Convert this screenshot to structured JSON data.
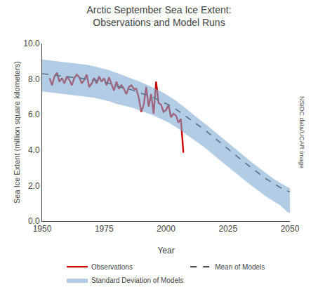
{
  "chart_data": {
    "type": "line",
    "title": "Arctic September Sea Ice Extent:\nObservations and Model Runs",
    "xlabel": "Year",
    "ylabel": "Sea Ice Extent (million square kilometers)",
    "annotations": [
      "NSIDC data/UCAR image"
    ],
    "xlim": [
      1950,
      2050
    ],
    "xticks": [
      1950,
      1975,
      2000,
      2025,
      2050
    ],
    "ylim": [
      0.0,
      10.0
    ],
    "yticks": [
      {
        "value": 0.0,
        "label": "0.0"
      },
      {
        "value": 2.0,
        "label": "2.0"
      },
      {
        "value": 4.0,
        "label": "4.0"
      },
      {
        "value": 6.0,
        "label": "6.0"
      },
      {
        "value": 8.0,
        "label": "8.0"
      },
      {
        "value": 10.0,
        "label": "10.0"
      }
    ],
    "grid": false,
    "legend": "bottom",
    "series": [
      {
        "name": "Observations",
        "type": "line",
        "color": "#cc0000",
        "line_style": "solid",
        "x": [
          1953,
          1954,
          1955,
          1956,
          1957,
          1958,
          1959,
          1960,
          1961,
          1962,
          1963,
          1964,
          1965,
          1966,
          1967,
          1968,
          1969,
          1970,
          1971,
          1972,
          1973,
          1974,
          1975,
          1976,
          1977,
          1978,
          1979,
          1980,
          1981,
          1982,
          1983,
          1984,
          1985,
          1986,
          1987,
          1988,
          1989,
          1990,
          1991,
          1992,
          1993,
          1994,
          1995,
          1996,
          1997,
          1998,
          1999,
          2000,
          2001,
          2002,
          2003,
          2004,
          2005,
          2006,
          2007
        ],
        "values": [
          8.05,
          7.65,
          8.15,
          8.35,
          7.85,
          8.05,
          7.75,
          8.15,
          7.95,
          7.65,
          8.05,
          8.25,
          8.1,
          7.75,
          7.95,
          8.25,
          7.55,
          7.75,
          8.05,
          7.75,
          8.15,
          7.85,
          8.05,
          7.65,
          8.1,
          7.75,
          7.35,
          7.85,
          7.45,
          7.65,
          7.45,
          7.15,
          7.55,
          7.65,
          7.45,
          7.45,
          6.95,
          6.15,
          6.55,
          7.55,
          6.45,
          7.15,
          6.05,
          7.85,
          6.65,
          6.55,
          6.15,
          6.25,
          6.55,
          5.85,
          6.05,
          5.95,
          5.55,
          5.75,
          3.85
        ]
      },
      {
        "name": "Mean of Models",
        "type": "line",
        "color": "#222222",
        "line_style": "dashed",
        "x": [
          1950,
          1953,
          1956,
          1959,
          1962,
          1965,
          1968,
          1971,
          1974,
          1977,
          1980,
          1983,
          1986,
          1989,
          1992,
          1995,
          1998,
          2001,
          2004,
          2007,
          2010,
          2013,
          2016,
          2019,
          2022,
          2025,
          2028,
          2031,
          2034,
          2037,
          2040,
          2043,
          2046,
          2049,
          2050
        ],
        "values": [
          8.3,
          8.25,
          8.2,
          8.15,
          8.1,
          8.05,
          8.0,
          7.95,
          7.85,
          7.75,
          7.6,
          7.5,
          7.4,
          7.25,
          7.1,
          6.95,
          6.75,
          6.55,
          6.3,
          6.0,
          5.7,
          5.4,
          5.1,
          4.75,
          4.4,
          4.05,
          3.7,
          3.38,
          3.05,
          2.72,
          2.42,
          2.15,
          1.9,
          1.7,
          1.65
        ]
      },
      {
        "name": "Standard Deviation of Models",
        "type": "band",
        "color": "#7eaad4",
        "x": [
          1950,
          1953,
          1956,
          1959,
          1962,
          1965,
          1968,
          1971,
          1974,
          1977,
          1980,
          1983,
          1986,
          1989,
          1992,
          1995,
          1998,
          2001,
          2004,
          2007,
          2010,
          2013,
          2016,
          2019,
          2022,
          2025,
          2028,
          2031,
          2034,
          2037,
          2040,
          2043,
          2046,
          2049,
          2050
        ],
        "upper": [
          9.1,
          9.05,
          9.0,
          8.95,
          8.9,
          8.85,
          8.8,
          8.72,
          8.62,
          8.5,
          8.35,
          8.2,
          8.05,
          7.88,
          7.7,
          7.5,
          7.3,
          7.05,
          6.78,
          6.45,
          6.1,
          5.78,
          5.45,
          5.1,
          4.75,
          4.4,
          4.05,
          3.72,
          3.38,
          3.05,
          2.72,
          2.42,
          2.15,
          1.9,
          1.85
        ],
        "lower": [
          7.3,
          7.25,
          7.2,
          7.15,
          7.1,
          7.05,
          7.0,
          6.95,
          6.85,
          6.75,
          6.6,
          6.5,
          6.4,
          6.25,
          6.1,
          5.95,
          5.75,
          5.55,
          5.3,
          5.0,
          4.7,
          4.4,
          4.1,
          3.75,
          3.4,
          3.05,
          2.7,
          2.38,
          2.05,
          1.72,
          1.42,
          1.15,
          0.9,
          0.5,
          0.45
        ]
      }
    ]
  }
}
